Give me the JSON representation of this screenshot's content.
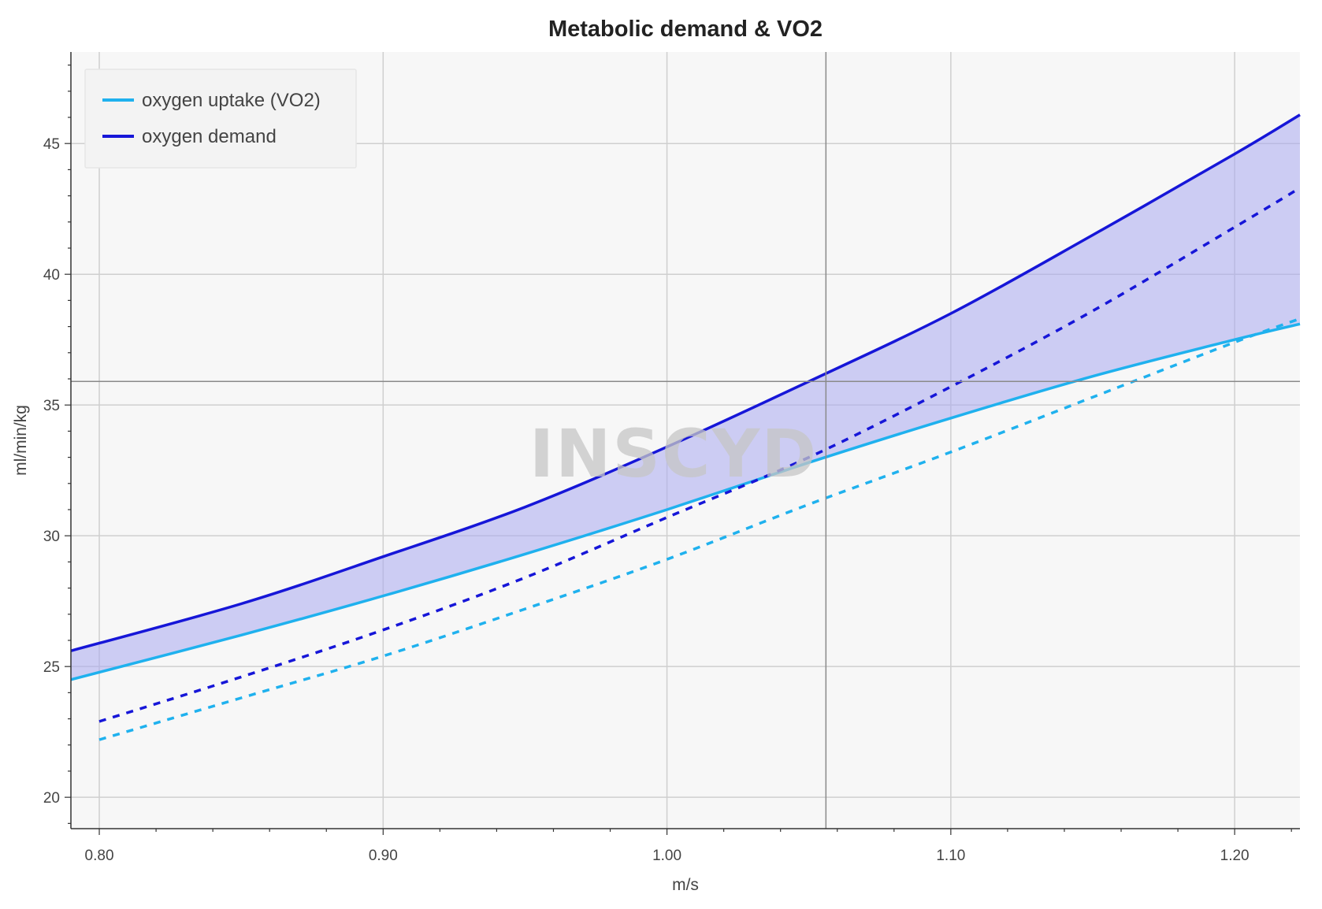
{
  "chart_data": {
    "type": "line",
    "title": "Metabolic demand & VO2",
    "xlabel": "m/s",
    "ylabel": "ml/min/kg",
    "xlim": [
      0.79,
      1.223
    ],
    "ylim": [
      18.8,
      48.5
    ],
    "xticks": [
      0.8,
      0.9,
      1.0,
      1.1,
      1.2
    ],
    "xtick_labels": [
      "0.80",
      "0.90",
      "1.00",
      "1.10",
      "1.20"
    ],
    "yticks": [
      20,
      25,
      30,
      35,
      40,
      45
    ],
    "ytick_labels": [
      "20",
      "25",
      "30",
      "35",
      "40",
      "45"
    ],
    "grid": true,
    "legend_position": "top-left",
    "series": [
      {
        "name": "oxygen uptake (VO2)",
        "color": "#1fb1ee",
        "dash": false,
        "x": [
          0.79,
          0.85,
          0.9,
          0.95,
          1.0,
          1.05,
          1.1,
          1.15,
          1.2,
          1.223
        ],
        "y": [
          24.5,
          26.2,
          27.7,
          29.3,
          31.0,
          32.8,
          34.5,
          36.1,
          37.5,
          38.1
        ]
      },
      {
        "name": "oxygen demand",
        "color": "#1616d8",
        "dash": false,
        "x": [
          0.79,
          0.85,
          0.9,
          0.95,
          1.0,
          1.05,
          1.1,
          1.15,
          1.2,
          1.223
        ],
        "y": [
          25.6,
          27.4,
          29.2,
          31.1,
          33.4,
          35.9,
          38.5,
          41.5,
          44.6,
          46.1
        ]
      },
      {
        "color": "#1616d8",
        "dash": true,
        "x": [
          0.8,
          0.85,
          0.9,
          0.95,
          1.0,
          1.05,
          1.1,
          1.15,
          1.2,
          1.223
        ],
        "y": [
          22.9,
          24.6,
          26.4,
          28.4,
          30.7,
          33.0,
          35.7,
          38.6,
          41.8,
          43.3
        ]
      },
      {
        "color": "#1fb1ee",
        "dash": true,
        "x": [
          0.8,
          0.85,
          0.9,
          0.95,
          1.0,
          1.05,
          1.1,
          1.15,
          1.2,
          1.223
        ],
        "y": [
          22.2,
          23.8,
          25.4,
          27.2,
          29.1,
          31.2,
          33.2,
          35.3,
          37.4,
          38.3
        ]
      }
    ],
    "fill_between": {
      "upper_series": 1,
      "lower_series": 0,
      "color": "#aaaaf0"
    },
    "crosshair": {
      "x": 1.056,
      "y": 35.9
    },
    "watermark": "INSCYD"
  }
}
